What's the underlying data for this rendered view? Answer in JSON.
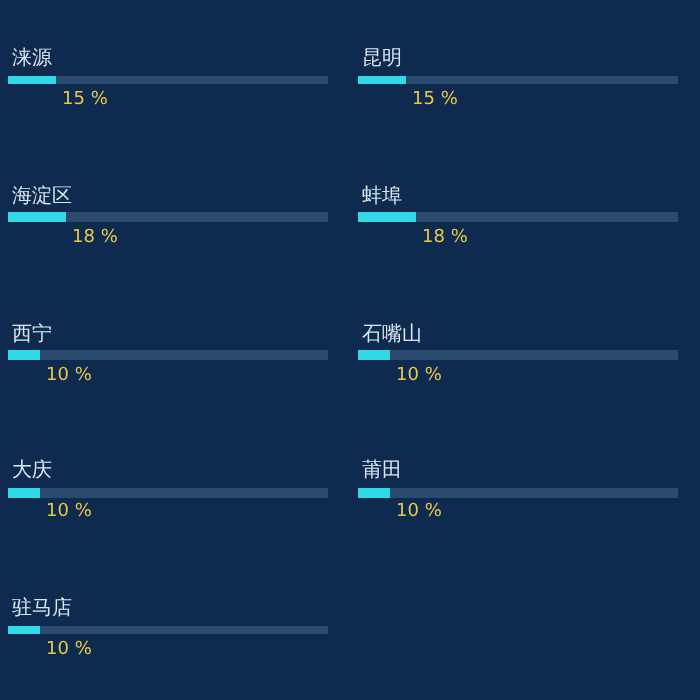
{
  "chart_data": [
    {
      "type": "bar",
      "orientation": "horizontal",
      "stacked": true,
      "categories": [
        "涞源",
        "海淀区",
        "西宁",
        "大庆",
        "驻马店"
      ],
      "series": [
        {
          "color": "#31d8e6",
          "values": [
            15,
            18,
            10,
            10,
            10
          ],
          "value_labels": [
            "15 %",
            "18 %",
            "10 %",
            "10 %",
            "10 %"
          ]
        },
        {
          "color": "#2b4b6e",
          "values": [
            85,
            82,
            90,
            90,
            90
          ]
        }
      ],
      "tick_labels": false,
      "grid": false
    },
    {
      "type": "bar",
      "orientation": "horizontal",
      "stacked": true,
      "categories": [
        "昆明",
        "蚌埠",
        "石嘴山",
        "莆田"
      ],
      "series": [
        {
          "color": "#31d8e6",
          "values": [
            15,
            18,
            10,
            10
          ],
          "value_labels": [
            "15 %",
            "18 %",
            "10 %",
            "10 %"
          ]
        },
        {
          "color": "#2b4b6e",
          "values": [
            85,
            82,
            90,
            90
          ]
        }
      ],
      "tick_labels": false,
      "grid": false
    }
  ]
}
